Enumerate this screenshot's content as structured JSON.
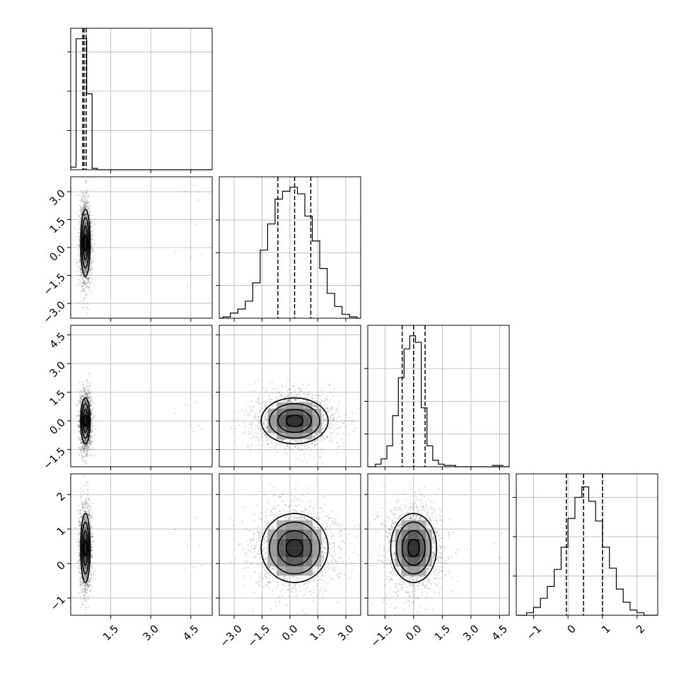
{
  "chart_data": {
    "type": "corner",
    "grid": true,
    "colors": {
      "line": "#000000",
      "grid": "#b0b0b0",
      "points": "#000000"
    },
    "parameters": [
      {
        "index": 0,
        "range": [
          0,
          5.3
        ],
        "ticks": [
          1.5,
          3.0,
          4.5
        ],
        "tick_labels": [
          "1.5",
          "3.0",
          "4.5"
        ],
        "mean": 0.55,
        "std": 0.09,
        "quantiles": [
          0.45,
          0.5,
          0.58
        ],
        "outliers": [
          4.3,
          4.5,
          4.7,
          4.8,
          3.9,
          4.6,
          4.4,
          4.9
        ],
        "histogram": {
          "edges": [
            0,
            0.2,
            0.4,
            0.6,
            0.8,
            1.0
          ],
          "counts": [
            0.02,
            1.0,
            1.0,
            0.58,
            0.01
          ],
          "ylim": [
            0,
            1.08
          ],
          "yticks": [
            0.3,
            0.6,
            0.9
          ]
        }
      },
      {
        "index": 1,
        "range": [
          -3.8,
          3.8
        ],
        "ticks": [
          -3.0,
          -1.5,
          0.0,
          1.5,
          3.0
        ],
        "tick_labels": [
          "−3.0",
          "−1.5",
          "0.0",
          "1.5",
          "3.0"
        ],
        "mean": 0.25,
        "std": 0.9,
        "quantiles": [
          -0.65,
          0.25,
          1.12
        ],
        "histogram": {
          "edges": [
            -3.6,
            -3.2,
            -2.8,
            -2.4,
            -2.0,
            -1.6,
            -1.2,
            -0.8,
            -0.4,
            0.0,
            0.4,
            0.8,
            1.2,
            1.6,
            2.0,
            2.4,
            2.8,
            3.2,
            3.6
          ],
          "counts": [
            0.01,
            0.04,
            0.07,
            0.13,
            0.27,
            0.52,
            0.72,
            0.91,
            0.97,
            1.0,
            0.95,
            0.78,
            0.59,
            0.38,
            0.19,
            0.09,
            0.03,
            0.01
          ],
          "ylim": [
            0,
            1.08
          ],
          "yticks": [
            0.25,
            0.5,
            0.75
          ]
        }
      },
      {
        "index": 2,
        "range": [
          -2.4,
          5.0
        ],
        "ticks": [
          -1.5,
          0.0,
          1.5,
          3.0,
          4.5
        ],
        "tick_labels": [
          "−1.5",
          "0.0",
          "1.5",
          "3.0",
          "4.5"
        ],
        "mean": 0.0,
        "std": 0.6,
        "quantiles": [
          -0.6,
          0.0,
          0.6
        ],
        "histogram": {
          "edges": [
            -2.0,
            -1.7,
            -1.4,
            -1.1,
            -0.8,
            -0.5,
            -0.2,
            0.1,
            0.4,
            0.7,
            1.0,
            1.3,
            1.6,
            1.9,
            2.2
          ],
          "counts": [
            0.02,
            0.06,
            0.16,
            0.39,
            0.68,
            0.9,
            1.0,
            0.95,
            0.45,
            0.16,
            0.05,
            0.02,
            0.01,
            0.01
          ],
          "ylim": [
            0,
            1.08
          ],
          "yticks": [
            0.25,
            0.5,
            0.75
          ]
        }
      },
      {
        "index": 3,
        "range": [
          -1.5,
          2.6
        ],
        "ticks": [
          -1,
          0,
          1,
          2
        ],
        "tick_labels": [
          "−1",
          "0",
          "1",
          "2"
        ],
        "mean": 0.45,
        "std": 0.5,
        "quantiles": [
          -0.05,
          0.45,
          1.0
        ],
        "histogram": {
          "edges": [
            -1.2,
            -1.0,
            -0.8,
            -0.6,
            -0.4,
            -0.2,
            0.0,
            0.2,
            0.4,
            0.6,
            0.8,
            1.0,
            1.2,
            1.4,
            1.6,
            1.8,
            2.0,
            2.2
          ],
          "counts": [
            0.02,
            0.06,
            0.13,
            0.22,
            0.35,
            0.52,
            0.74,
            0.9,
            0.98,
            0.87,
            0.72,
            0.52,
            0.36,
            0.2,
            0.1,
            0.04,
            0.02
          ],
          "ylim": [
            0,
            1.08
          ],
          "yticks": [
            0.3,
            0.6,
            0.9
          ]
        }
      }
    ],
    "pairs": [
      {
        "row": 1,
        "col": 0
      },
      {
        "row": 2,
        "col": 0
      },
      {
        "row": 2,
        "col": 1
      },
      {
        "row": 3,
        "col": 0
      },
      {
        "row": 3,
        "col": 1
      },
      {
        "row": 3,
        "col": 2
      }
    ]
  }
}
